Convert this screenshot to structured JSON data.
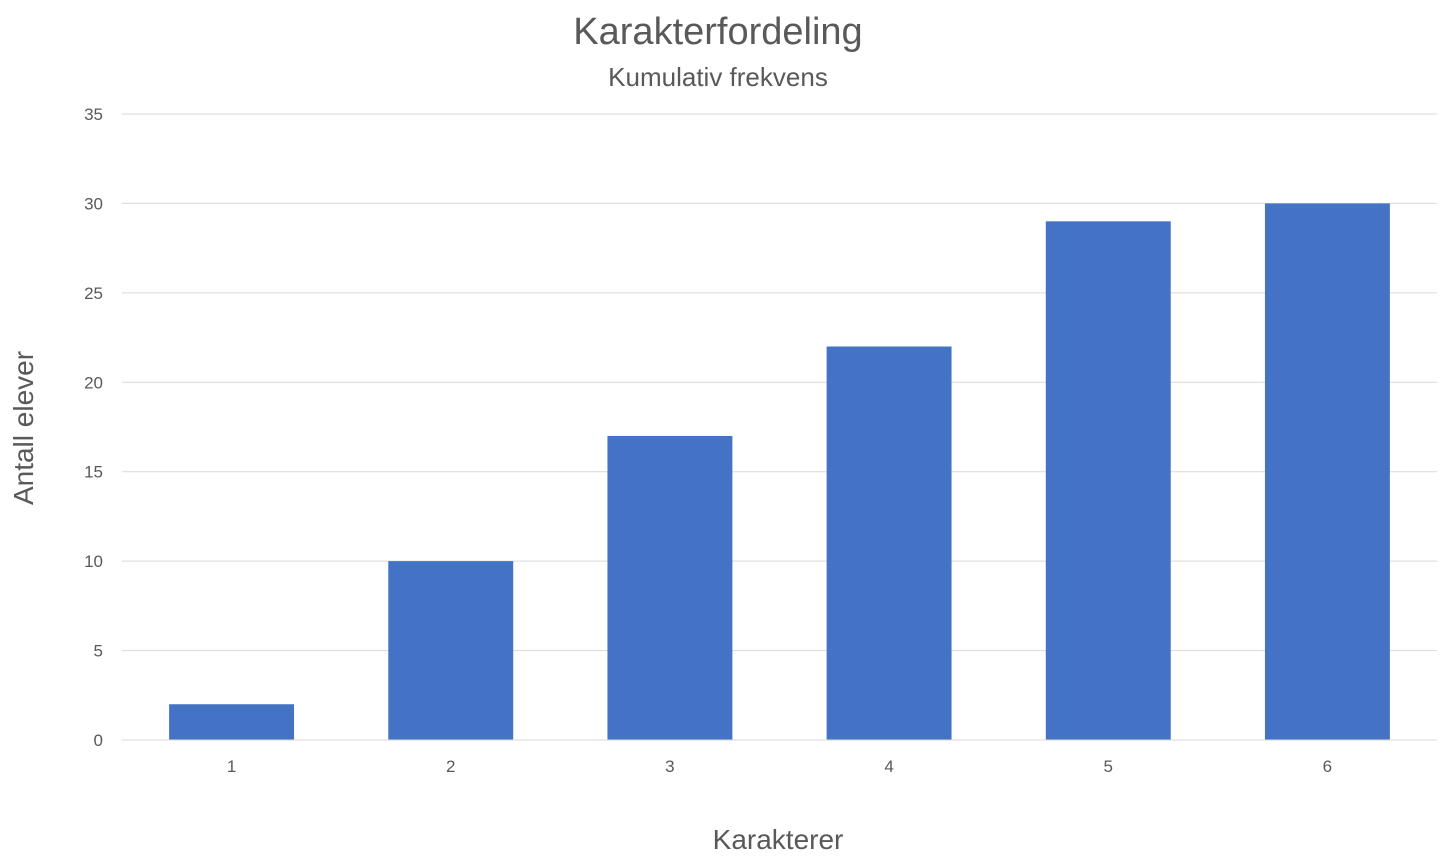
{
  "chart_data": {
    "type": "bar",
    "title": "Karakterfordeling",
    "subtitle": "Kumulativ frekvens",
    "xlabel": "Karakterer",
    "ylabel": "Antall elever",
    "categories": [
      "1",
      "2",
      "3",
      "4",
      "5",
      "6"
    ],
    "values": [
      2,
      10,
      17,
      22,
      29,
      30
    ],
    "ylim": [
      0,
      35
    ],
    "yticks": [
      "0",
      "5",
      "10",
      "15",
      "20",
      "25",
      "30",
      "35"
    ],
    "bar_color": "#4472c4",
    "grid": true,
    "legend": "none"
  }
}
